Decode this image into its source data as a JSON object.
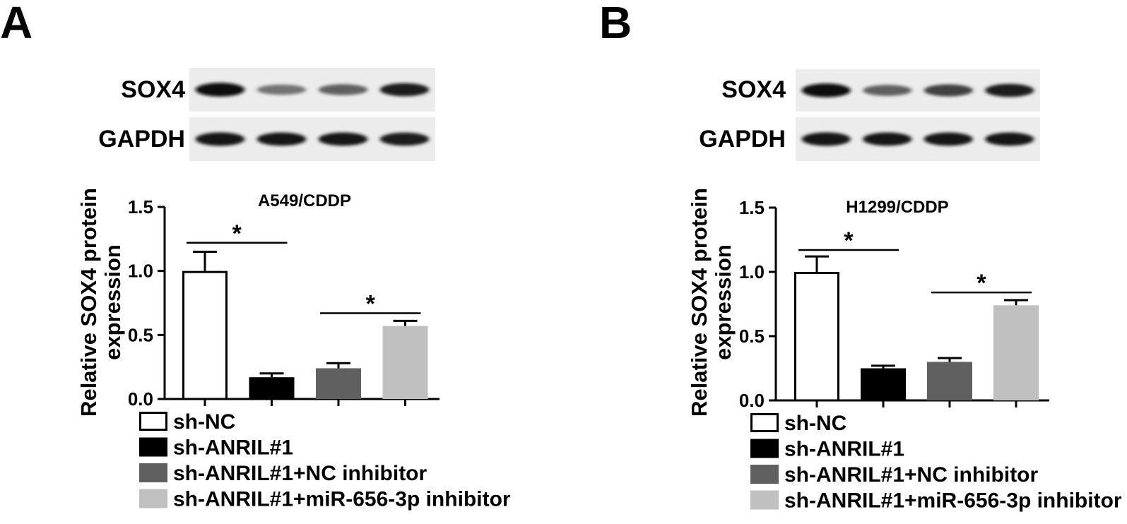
{
  "panels": [
    {
      "letter": "A",
      "blot_labels": [
        "SOX4",
        "GAPDH"
      ],
      "blot_intensity": {
        "SOX4": [
          0.95,
          0.55,
          0.62,
          0.88
        ],
        "GAPDH": [
          0.92,
          0.9,
          0.9,
          0.88
        ]
      }
    },
    {
      "letter": "B",
      "blot_labels": [
        "SOX4",
        "GAPDH"
      ],
      "blot_intensity": {
        "SOX4": [
          0.95,
          0.62,
          0.75,
          0.88
        ],
        "GAPDH": [
          0.92,
          0.9,
          0.9,
          0.9
        ]
      }
    }
  ],
  "legend": [
    {
      "label": "sh-NC",
      "color": "#ffffff"
    },
    {
      "label": "sh-ANRIL#1",
      "color": "#000000"
    },
    {
      "label": "sh-ANRIL#1+NC inhibitor",
      "color": "#606060"
    },
    {
      "label": "sh-ANRIL#1+miR-656-3p inhibitor",
      "color": "#c0c0c0"
    }
  ],
  "chart_data": [
    {
      "type": "bar",
      "title": "A549/CDDP",
      "ylabel": [
        "Relative SOX4 protein",
        "expression"
      ],
      "xlabel": "",
      "categories": [
        "sh-NC",
        "sh-ANRIL#1",
        "sh-ANRIL#1+NC inhibitor",
        "sh-ANRIL#1+miR-656-3p inhibitor"
      ],
      "values": [
        1.0,
        0.17,
        0.24,
        0.57
      ],
      "errors": [
        0.15,
        0.03,
        0.04,
        0.04
      ],
      "colors": [
        "#ffffff",
        "#000000",
        "#606060",
        "#c0c0c0"
      ],
      "ylim": [
        0,
        1.5
      ],
      "yticks": [
        "0.0",
        "0.5",
        "1.0",
        "1.5"
      ],
      "significance": [
        {
          "from": 0,
          "to": 1,
          "label": "*",
          "y": 1.22
        },
        {
          "from": 2,
          "to": 3,
          "label": "*",
          "y": 0.67
        }
      ]
    },
    {
      "type": "bar",
      "title": "H1299/CDDP",
      "ylabel": [
        "Relative SOX4 protein",
        "expression"
      ],
      "xlabel": "",
      "categories": [
        "sh-NC",
        "sh-ANRIL#1",
        "sh-ANRIL#1+NC inhibitor",
        "sh-ANRIL#1+miR-656-3p inhibitor"
      ],
      "values": [
        1.0,
        0.25,
        0.3,
        0.74
      ],
      "errors": [
        0.12,
        0.02,
        0.03,
        0.04
      ],
      "colors": [
        "#ffffff",
        "#000000",
        "#606060",
        "#c0c0c0"
      ],
      "ylim": [
        0,
        1.5
      ],
      "yticks": [
        "0.0",
        "0.5",
        "1.0",
        "1.5"
      ],
      "significance": [
        {
          "from": 0,
          "to": 1,
          "label": "*",
          "y": 1.17
        },
        {
          "from": 2,
          "to": 3,
          "label": "*",
          "y": 0.84
        }
      ]
    }
  ]
}
